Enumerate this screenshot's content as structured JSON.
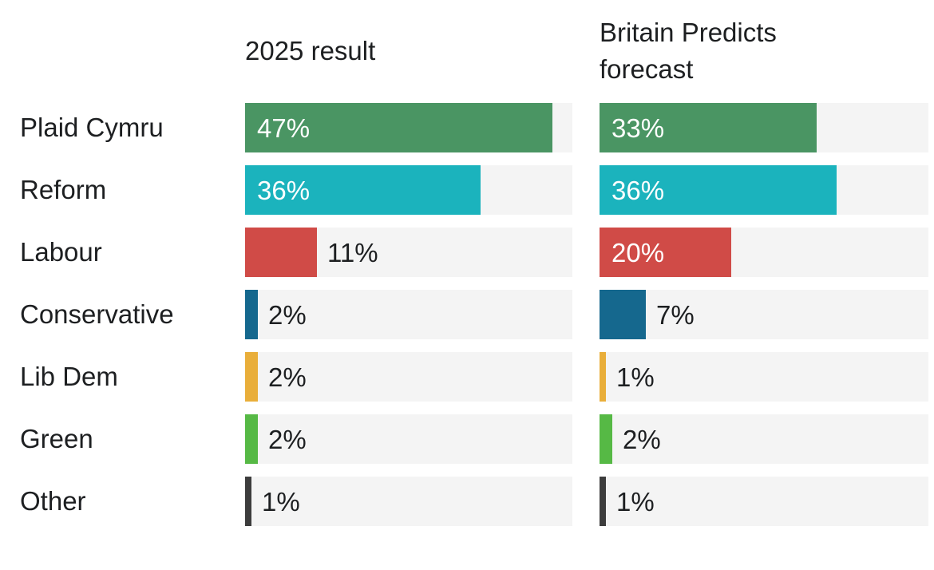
{
  "chart_data": {
    "type": "bar",
    "orientation": "horizontal",
    "title": "",
    "categories": [
      "Plaid Cymru",
      "Reform",
      "Labour",
      "Conservative",
      "Lib Dem",
      "Green",
      "Other"
    ],
    "series": [
      {
        "name": "2025 result",
        "values": [
          47,
          36,
          11,
          2,
          2,
          2,
          1
        ]
      },
      {
        "name": "Britain Predicts forecast",
        "values": [
          33,
          36,
          20,
          7,
          1,
          2,
          1
        ]
      }
    ],
    "value_suffix": "%",
    "xlim": [
      0,
      50
    ],
    "grid": false,
    "legend_position": "column-headers",
    "inside_label_min": 20,
    "bar_colors": [
      "#4a9563",
      "#1bb3bd",
      "#d04b47",
      "#15688e",
      "#e9ae3a",
      "#56b945",
      "#3d3d3d"
    ],
    "track_color": "#f4f4f4",
    "inside_label_color": "#ffffff",
    "outside_label_color": "#1d1f21"
  }
}
